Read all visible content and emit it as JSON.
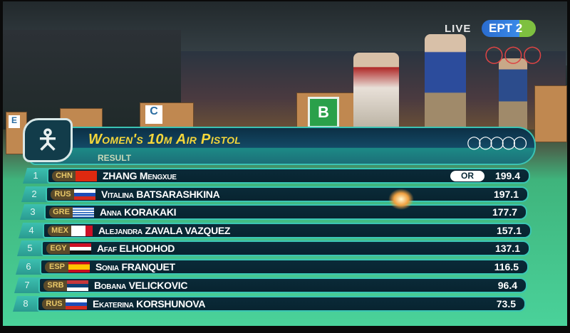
{
  "broadcast": {
    "live_label": "LIVE",
    "channel_logo": "ΕΡΤ 2"
  },
  "venue_signs": [
    "E",
    "C",
    "B"
  ],
  "graphic": {
    "title": "Women's 10m Air Pistol",
    "subtitle": "RESULT",
    "sport_icon": "shooting-pictogram-icon",
    "logo": "olympic-rings-icon",
    "colors": {
      "title": "#f5d63a",
      "bar": "#082430",
      "accent": "#3ac6b4"
    },
    "results": [
      {
        "rank": "1",
        "noc": "CHN",
        "first": "ZHANG",
        "second": "Mengxue",
        "record": "OR",
        "score": "199.4"
      },
      {
        "rank": "2",
        "noc": "RUS",
        "first": "Vitalina",
        "second": "BATSARASHKINA",
        "record": "",
        "score": "197.1"
      },
      {
        "rank": "3",
        "noc": "GRE",
        "first": "Anna",
        "second": "KORAKAKI",
        "record": "",
        "score": "177.7"
      },
      {
        "rank": "4",
        "noc": "MEX",
        "first": "Alejandra",
        "second": "ZAVALA VAZQUEZ",
        "record": "",
        "score": "157.1"
      },
      {
        "rank": "5",
        "noc": "EGY",
        "first": "Afaf",
        "second": "ELHODHOD",
        "record": "",
        "score": "137.1"
      },
      {
        "rank": "6",
        "noc": "ESP",
        "first": "Sonia",
        "second": "FRANQUET",
        "record": "",
        "score": "116.5"
      },
      {
        "rank": "7",
        "noc": "SRB",
        "first": "Bobana",
        "second": "VELICKOVIC",
        "record": "",
        "score": "96.4"
      },
      {
        "rank": "8",
        "noc": "RUS",
        "first": "Ekaterina",
        "second": "KORSHUNOVA",
        "record": "",
        "score": "73.5"
      }
    ]
  }
}
